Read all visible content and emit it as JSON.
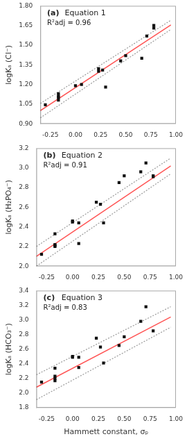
{
  "chart_data": [
    {
      "type": "scatter",
      "ylabel": "logKₐ (Cl⁻)",
      "annotations": [
        "(a)",
        "Equation 1",
        "R²adj = 0.96"
      ],
      "xlim": [
        -0.35,
        1.0
      ],
      "xticks": [
        -0.25,
        {
          "value": 0.0,
          "label": "0.00"
        },
        0.25,
        {
          "value": 0.5,
          "label": "0.50"
        },
        0.75,
        {
          "value": 1.0,
          "label": "1.00"
        }
      ],
      "ylim": [
        0.9,
        1.8
      ],
      "yticks": [
        {
          "value": 0.9,
          "label": "0.90"
        },
        1.05,
        {
          "value": 1.2,
          "label": "1.20"
        },
        1.35,
        {
          "value": 1.5,
          "label": "1.50"
        },
        1.65,
        {
          "value": 1.8,
          "label": "1.80"
        }
      ],
      "grid": false,
      "series": [
        {
          "type": "line",
          "line_style": "dotted",
          "color": "#999999",
          "x": [
            -0.35,
            0.95
          ],
          "values": [
            1.055,
            1.69
          ]
        },
        {
          "type": "line",
          "line_style": "dotted",
          "color": "#999999",
          "x": [
            -0.35,
            0.95
          ],
          "values": [
            0.945,
            1.62
          ]
        },
        {
          "type": "line",
          "line_style": "solid",
          "color": "#ff5555",
          "x": [
            -0.35,
            0.95
          ],
          "values": [
            1.0,
            1.655
          ]
        },
        {
          "type": "scatter",
          "marker": "square",
          "color": "#111111",
          "x": [
            -0.3,
            -0.17,
            -0.17,
            -0.17,
            -0.17,
            0.0,
            0.06,
            0.23,
            0.23,
            0.27,
            0.3,
            0.45,
            0.5,
            0.66,
            0.71,
            0.78,
            0.78
          ],
          "values": [
            1.045,
            1.08,
            1.1,
            1.11,
            1.13,
            1.19,
            1.2,
            1.3,
            1.32,
            1.31,
            1.18,
            1.38,
            1.42,
            1.4,
            1.57,
            1.63,
            1.65
          ]
        }
      ]
    },
    {
      "type": "scatter",
      "ylabel": "logKₐ (H₂PO₄⁻)",
      "annotations": [
        "(b)",
        "Equation 2",
        "R²adj = 0.91"
      ],
      "xlim": [
        -0.35,
        1.0
      ],
      "xticks": [
        -0.25,
        {
          "value": 0.0,
          "label": "0.00"
        },
        0.25,
        {
          "value": 0.5,
          "label": "0.50"
        },
        0.75,
        {
          "value": 1.0,
          "label": "1.00"
        }
      ],
      "ylim": [
        2.0,
        3.2
      ],
      "yticks": [
        {
          "value": 2.0,
          "label": "2.0"
        },
        2.2,
        2.4,
        2.6,
        2.8,
        {
          "value": 3.0,
          "label": "3.0"
        },
        3.2
      ],
      "grid": false,
      "series": [
        {
          "type": "line",
          "line_style": "dotted",
          "color": "#999999",
          "x": [
            -0.35,
            0.95
          ],
          "values": [
            2.2,
            3.1
          ]
        },
        {
          "type": "line",
          "line_style": "dotted",
          "color": "#999999",
          "x": [
            -0.35,
            0.95
          ],
          "values": [
            2.0,
            2.94
          ]
        },
        {
          "type": "line",
          "line_style": "solid",
          "color": "#ff5555",
          "x": [
            -0.35,
            0.95
          ],
          "values": [
            2.1,
            3.02
          ]
        },
        {
          "type": "scatter",
          "marker": "square",
          "color": "#111111",
          "x": [
            -0.3,
            -0.17,
            -0.17,
            -0.17,
            -0.17,
            0.0,
            0.0,
            0.06,
            0.06,
            0.23,
            0.27,
            0.3,
            0.45,
            0.5,
            0.66,
            0.71,
            0.78,
            0.78
          ],
          "values": [
            2.12,
            2.21,
            2.22,
            2.33,
            2.2,
            2.46,
            2.45,
            2.23,
            2.44,
            2.65,
            2.63,
            2.44,
            2.85,
            2.92,
            2.96,
            3.05,
            2.92,
            2.91
          ]
        }
      ]
    },
    {
      "type": "scatter",
      "xlabel": "Hammett constant, σₚ",
      "ylabel": "logKₐ (HCO₃⁻)",
      "annotations": [
        "(c)",
        "Equation 3",
        "R²adj = 0.83"
      ],
      "xlim": [
        -0.35,
        1.0
      ],
      "xticks": [
        -0.25,
        {
          "value": 0.0,
          "label": "0.00"
        },
        0.25,
        {
          "value": 0.5,
          "label": "0.50"
        },
        0.75,
        {
          "value": 1.0,
          "label": "1.00"
        }
      ],
      "ylim": [
        1.8,
        3.4
      ],
      "yticks": [
        1.8,
        {
          "value": 2.0,
          "label": "2.0"
        },
        2.2,
        2.4,
        2.6,
        2.8,
        {
          "value": 3.0,
          "label": "3.0"
        },
        3.2,
        3.4
      ],
      "grid": false,
      "series": [
        {
          "type": "line",
          "line_style": "dotted",
          "color": "#999999",
          "x": [
            -0.35,
            0.95
          ],
          "values": [
            2.25,
            3.18
          ]
        },
        {
          "type": "line",
          "line_style": "dotted",
          "color": "#999999",
          "x": [
            -0.35,
            0.95
          ],
          "values": [
            1.91,
            2.9
          ]
        },
        {
          "type": "line",
          "line_style": "solid",
          "color": "#ff5555",
          "x": [
            -0.35,
            0.95
          ],
          "values": [
            2.08,
            3.04
          ]
        },
        {
          "type": "scatter",
          "marker": "square",
          "color": "#111111",
          "x": [
            -0.3,
            -0.17,
            -0.17,
            -0.17,
            -0.17,
            0.0,
            0.0,
            0.06,
            0.06,
            0.23,
            0.27,
            0.3,
            0.45,
            0.5,
            0.66,
            0.71,
            0.78
          ],
          "values": [
            2.15,
            2.17,
            2.2,
            2.34,
            2.23,
            2.5,
            2.49,
            2.35,
            2.49,
            2.75,
            2.63,
            2.41,
            2.65,
            2.77,
            2.98,
            3.18,
            2.85
          ]
        }
      ]
    }
  ]
}
